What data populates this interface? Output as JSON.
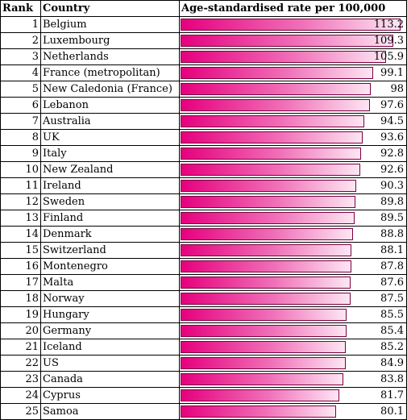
{
  "colors": {
    "bar_start": "#e6007e",
    "bar_end": "#fde6f3",
    "bar_border": "#7a003f"
  },
  "table": {
    "headers": {
      "rank": "Rank",
      "country": "Country",
      "rate": "Age-standardised rate per 100,000"
    }
  },
  "chart_data": {
    "type": "bar",
    "orientation": "horizontal",
    "xlim": [
      0,
      113.2
    ],
    "categories": [
      "Belgium",
      "Luxembourg",
      "Netherlands",
      "France (metropolitan)",
      "New Caledonia (France)",
      "Lebanon",
      "Australia",
      "UK",
      "Italy",
      "New Zealand",
      "Ireland",
      "Sweden",
      "Finland",
      "Denmark",
      "Switzerland",
      "Montenegro",
      "Malta",
      "Norway",
      "Hungary",
      "Germany",
      "Iceland",
      "US",
      "Canada",
      "Cyprus",
      "Samoa"
    ],
    "ranks": [
      1,
      2,
      3,
      4,
      5,
      6,
      7,
      8,
      9,
      10,
      11,
      12,
      13,
      14,
      15,
      16,
      17,
      18,
      19,
      20,
      21,
      22,
      23,
      24,
      25
    ],
    "values": [
      113.2,
      109.3,
      105.9,
      99.1,
      98,
      97.6,
      94.5,
      93.6,
      92.8,
      92.6,
      90.3,
      89.8,
      89.5,
      88.8,
      88.1,
      87.8,
      87.6,
      87.5,
      85.5,
      85.4,
      85.2,
      84.9,
      83.8,
      81.7,
      80.1
    ],
    "value_labels": [
      "113.2",
      "109.3",
      "105.9",
      "99.1",
      "98",
      "97.6",
      "94.5",
      "93.6",
      "92.8",
      "92.6",
      "90.3",
      "89.8",
      "89.5",
      "88.8",
      "88.1",
      "87.8",
      "87.6",
      "87.5",
      "85.5",
      "85.4",
      "85.2",
      "84.9",
      "83.8",
      "81.7",
      "80.1"
    ]
  }
}
